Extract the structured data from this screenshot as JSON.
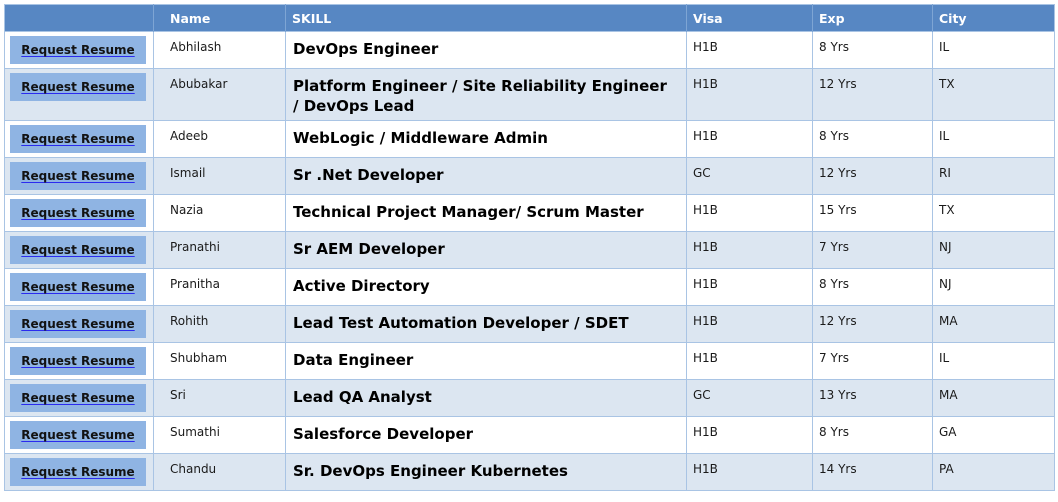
{
  "colors": {
    "header_bg": "#5787c3",
    "header_text": "#ffffff",
    "header_separator": "#7ea5d4",
    "alt_row_bg": "#dce6f1",
    "grid_border": "#a9c4e4",
    "button_bg": "#8fb4e3",
    "button_text": "#121212",
    "button_underline": "#2b2bef",
    "body_text": "#1a1a1a"
  },
  "table": {
    "action_label": "Request Resume",
    "columns": [
      {
        "key": "action",
        "label": ""
      },
      {
        "key": "name",
        "label": "Name"
      },
      {
        "key": "skill",
        "label": "SKILL"
      },
      {
        "key": "visa",
        "label": "Visa"
      },
      {
        "key": "exp",
        "label": "Exp"
      },
      {
        "key": "city",
        "label": "City"
      }
    ],
    "rows": [
      {
        "name": "Abhilash",
        "skill": "DevOps Engineer",
        "visa": "H1B",
        "exp": "8 Yrs",
        "city": "IL"
      },
      {
        "name": "Abubakar",
        "skill": "Platform Engineer / Site Reliability Engineer\n/ DevOps Lead",
        "visa": "H1B",
        "exp": "12 Yrs",
        "city": "TX"
      },
      {
        "name": "Adeeb",
        "skill": "WebLogic / Middleware Admin",
        "visa": "H1B",
        "exp": "8 Yrs",
        "city": "IL"
      },
      {
        "name": "Ismail",
        "skill": "Sr .Net Developer",
        "visa": "GC",
        "exp": "12 Yrs",
        "city": "RI"
      },
      {
        "name": "Nazia",
        "skill": "Technical Project Manager/ Scrum Master",
        "visa": "H1B",
        "exp": "15 Yrs",
        "city": "TX"
      },
      {
        "name": "Pranathi",
        "skill": "Sr AEM Developer",
        "visa": "H1B",
        "exp": "7 Yrs",
        "city": "NJ"
      },
      {
        "name": "Pranitha",
        "skill": "Active Directory",
        "visa": "H1B",
        "exp": "8 Yrs",
        "city": "NJ"
      },
      {
        "name": "Rohith",
        "skill": "Lead Test Automation Developer / SDET",
        "visa": "H1B",
        "exp": "12 Yrs",
        "city": "MA"
      },
      {
        "name": "Shubham",
        "skill": "Data Engineer",
        "visa": "H1B",
        "exp": "7 Yrs",
        "city": "IL"
      },
      {
        "name": "Sri",
        "skill": "Lead QA Analyst",
        "visa": "GC",
        "exp": "13 Yrs",
        "city": "MA"
      },
      {
        "name": "Sumathi",
        "skill": "Salesforce Developer",
        "visa": "H1B",
        "exp": "8 Yrs",
        "city": "GA"
      },
      {
        "name": "Chandu",
        "skill": "Sr. DevOps Engineer Kubernetes",
        "visa": "H1B",
        "exp": "14 Yrs",
        "city": "PA"
      }
    ]
  }
}
